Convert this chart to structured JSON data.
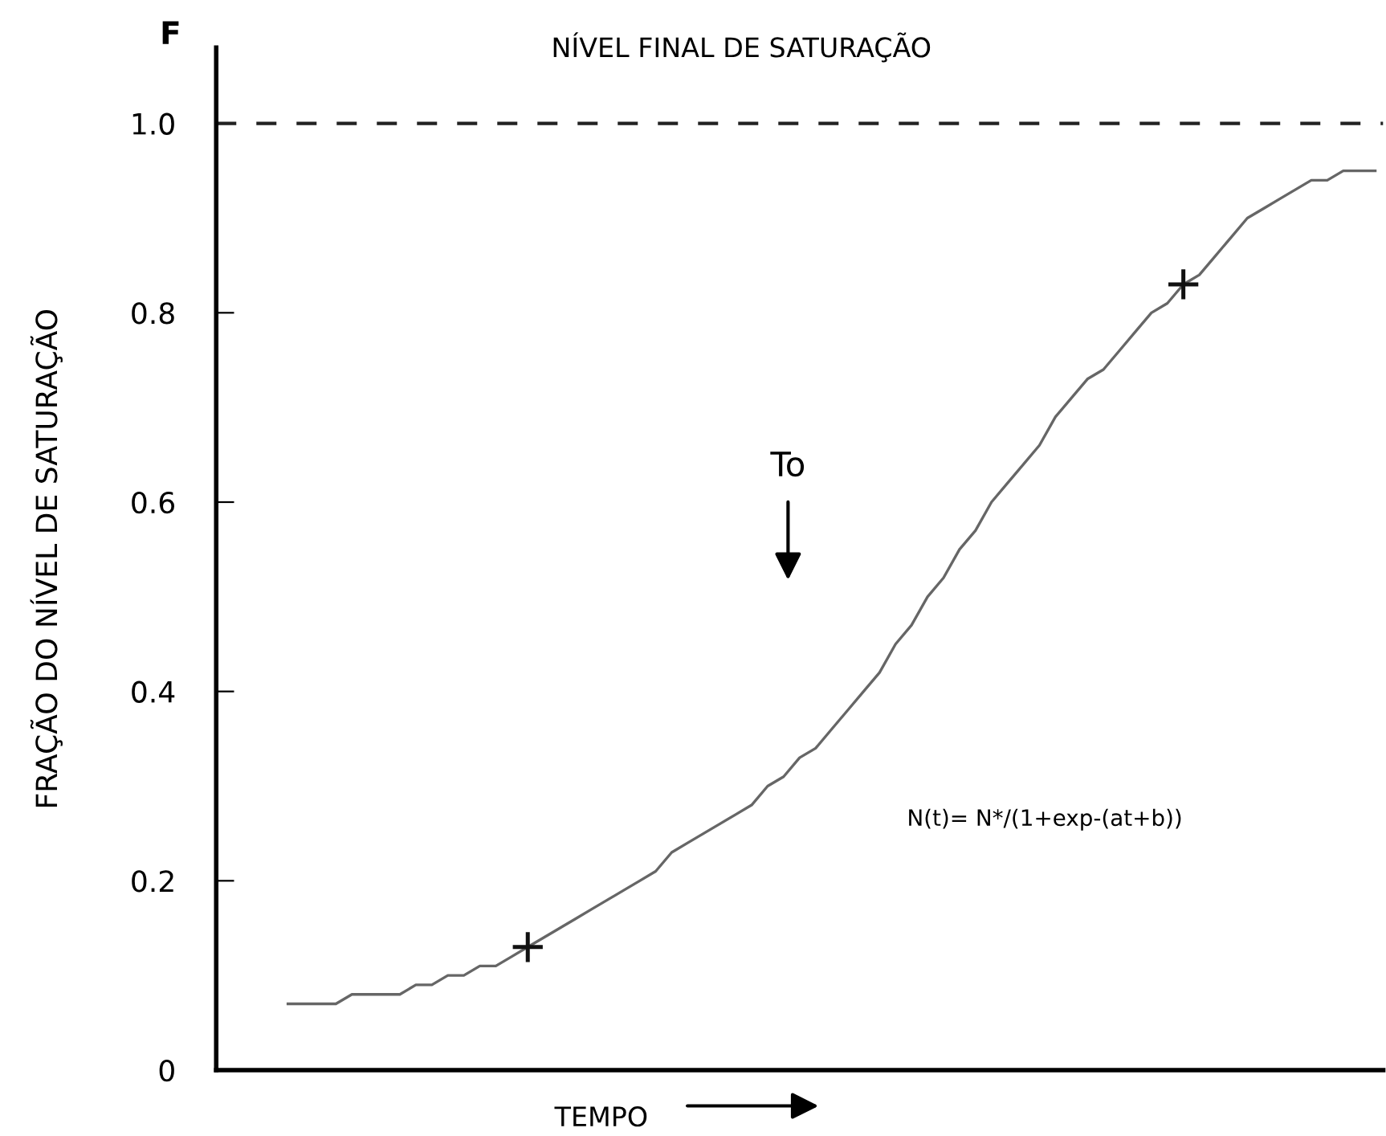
{
  "chart_data": {
    "type": "line",
    "ylabel": "FRAÇÃO DO NÍVEL DE SATURAÇÃO",
    "xlabel": "TEMPO",
    "categories": [
      null,
      null,
      null,
      null,
      null,
      null,
      null,
      null,
      null,
      null,
      null,
      null,
      null,
      null,
      null,
      null,
      null,
      null,
      null,
      null,
      null,
      null,
      null,
      null,
      null,
      null,
      null,
      null,
      null,
      null,
      null,
      null,
      null,
      null,
      null,
      null,
      null,
      null,
      null,
      null,
      null,
      null,
      null,
      null,
      null,
      null,
      null,
      null,
      null,
      null,
      null,
      null,
      null,
      null,
      null,
      null,
      null,
      null,
      null,
      null,
      null,
      null,
      null,
      null,
      null,
      null,
      null,
      null,
      null
    ],
    "series": [
      {
        "color": "#666666",
        "values": [
          0.07,
          0.07,
          0.07,
          0.07,
          0.08,
          0.08,
          0.08,
          0.08,
          0.09,
          0.09,
          0.1,
          0.1,
          0.11,
          0.11,
          0.12,
          0.13,
          0.14,
          0.15,
          0.16,
          0.17,
          0.18,
          0.19,
          0.2,
          0.21,
          0.23,
          0.24,
          0.25,
          0.26,
          0.27,
          0.28,
          0.3,
          0.31,
          0.33,
          0.34,
          0.36,
          0.38,
          0.4,
          0.42,
          0.45,
          0.47,
          0.5,
          0.52,
          0.55,
          0.57,
          0.6,
          0.62,
          0.64,
          0.66,
          0.69,
          0.71,
          0.73,
          0.74,
          0.76,
          0.78,
          0.8,
          0.81,
          0.83,
          0.84,
          0.86,
          0.88,
          0.9,
          0.91,
          0.92,
          0.93,
          0.94,
          0.94,
          0.95,
          0.95,
          0.95
        ]
      },
      {
        "type": "scatter",
        "color": "#111111",
        "marker": "cross",
        "values": [
          null,
          null,
          null,
          null,
          null,
          null,
          null,
          null,
          null,
          null,
          null,
          null,
          null,
          null,
          null,
          0.13,
          null,
          null,
          null,
          null,
          null,
          null,
          null,
          null,
          null,
          null,
          null,
          null,
          null,
          null,
          null,
          null,
          null,
          null,
          null,
          null,
          null,
          null,
          null,
          null,
          null,
          null,
          null,
          null,
          null,
          null,
          null,
          null,
          null,
          null,
          null,
          null,
          null,
          null,
          null,
          null,
          0.83,
          null,
          null,
          null,
          null,
          null,
          null,
          null,
          null,
          null,
          null,
          null,
          null
        ]
      }
    ],
    "ylim": [
      0,
      1.08
    ],
    "yticks": [
      0,
      {
        "value": 0.2,
        "label": "0.2"
      },
      {
        "value": 0.4,
        "label": "0.4"
      },
      {
        "value": 0.6,
        "label": "0.6"
      },
      {
        "value": 0.8,
        "label": "0.8"
      },
      {
        "value": 1.0,
        "label": "1.0"
      }
    ],
    "ref_lines": [
      {
        "axis": "y",
        "value": 1.0,
        "label": "NÍVEL FINAL DE SATURAÇÃO",
        "color": "#222222",
        "line_style": "dashed"
      }
    ],
    "annotations": [
      "F",
      "To",
      "N(t)= N*/(1+exp-(at+b))"
    ],
    "grid": false
  }
}
